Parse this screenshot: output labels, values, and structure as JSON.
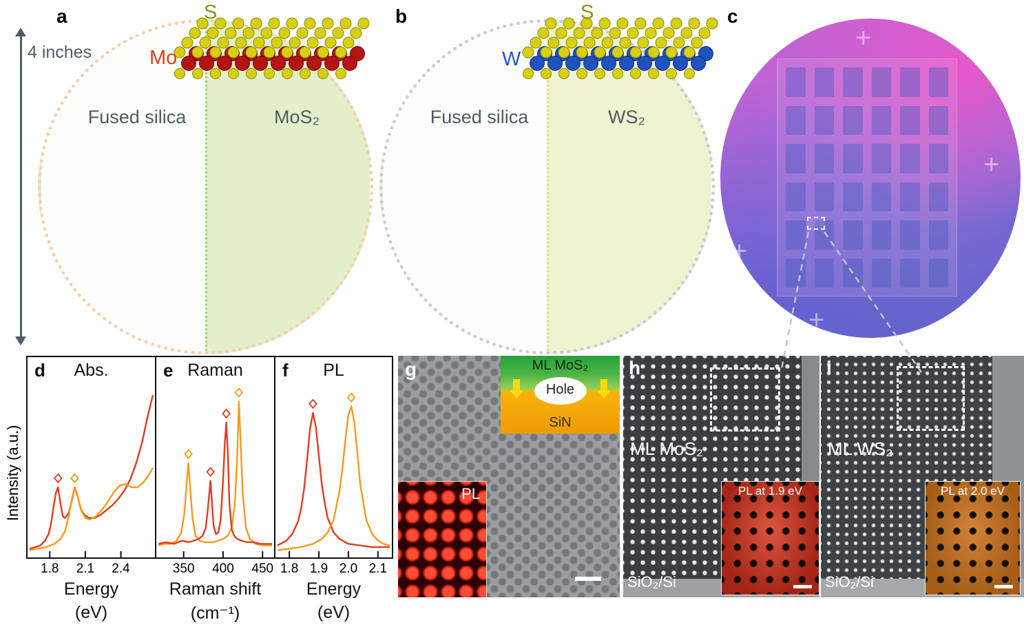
{
  "figure": {
    "scale_label": "4 inches",
    "panels": {
      "a": {
        "letter": "a",
        "s_label": "S",
        "metal_label": "Mo",
        "left_label": "Fused silica",
        "right_label": "MoS₂"
      },
      "b": {
        "letter": "b",
        "s_label": "S",
        "metal_label": "W",
        "left_label": "Fused silica",
        "right_label": "WS₂"
      },
      "c": {
        "letter": "c",
        "cross_glyph": "+"
      },
      "g": {
        "letter": "g",
        "schematic": {
          "layer_top": "ML MoS₂",
          "hole": "Hole",
          "layer_bottom": "SiN"
        },
        "pl_label": "PL"
      },
      "h": {
        "letter": "h",
        "material_label": "ML MoS₂",
        "substrate_label": "SiO₂/Si",
        "inset_label": "PL at 1.9 eV"
      },
      "i": {
        "letter": "i",
        "material_label": "ML WS₂",
        "substrate_label": "SiO₂/Si",
        "inset_label": "PL at 2.0 eV"
      }
    },
    "colors": {
      "mos2_red": "#e23b1e",
      "ws2_orange": "#f79a1b"
    }
  },
  "chart_data": [
    {
      "type": "line",
      "panel_letter": "d",
      "title": "Abs.",
      "xlabel": "Energy",
      "xunit": "(eV)",
      "ylabel": "Intensity (a.u.)",
      "xlim": [
        1.63,
        2.67
      ],
      "xticks": [
        "1.8",
        "2.1",
        "2.4"
      ],
      "grid": false,
      "legend": "none",
      "series": [
        {
          "name": "MoS₂",
          "color": "#e23b1e",
          "x": [
            1.63,
            1.68,
            1.72,
            1.76,
            1.79,
            1.81,
            1.83,
            1.85,
            1.87,
            1.89,
            1.91,
            1.93,
            1.96,
            1.99,
            2.01,
            2.03,
            2.06,
            2.09,
            2.13,
            2.18,
            2.23,
            2.28,
            2.33,
            2.38,
            2.43,
            2.48,
            2.53,
            2.58,
            2.62,
            2.67
          ],
          "y": [
            0.02,
            0.03,
            0.04,
            0.07,
            0.11,
            0.17,
            0.27,
            0.36,
            0.4,
            0.3,
            0.22,
            0.21,
            0.24,
            0.33,
            0.4,
            0.36,
            0.27,
            0.23,
            0.21,
            0.21,
            0.23,
            0.26,
            0.29,
            0.33,
            0.38,
            0.45,
            0.55,
            0.68,
            0.82,
            0.97
          ]
        },
        {
          "name": "WS₂",
          "color": "#f79a1b",
          "x": [
            1.63,
            1.7,
            1.77,
            1.84,
            1.89,
            1.93,
            1.96,
            1.99,
            2.01,
            2.04,
            2.07,
            2.1,
            2.14,
            2.19,
            2.24,
            2.29,
            2.34,
            2.39,
            2.44,
            2.49,
            2.54,
            2.59,
            2.63,
            2.67
          ],
          "y": [
            0.01,
            0.02,
            0.03,
            0.05,
            0.08,
            0.13,
            0.22,
            0.34,
            0.4,
            0.33,
            0.25,
            0.21,
            0.2,
            0.22,
            0.26,
            0.31,
            0.37,
            0.41,
            0.42,
            0.4,
            0.4,
            0.43,
            0.47,
            0.52
          ]
        }
      ],
      "markers": [
        {
          "x": 1.87,
          "y": 0.4,
          "color": "#e23b1e"
        },
        {
          "x": 2.01,
          "y": 0.4,
          "color": "#f79a1b"
        }
      ]
    },
    {
      "type": "line",
      "panel_letter": "e",
      "title": "Raman",
      "xlabel": "Raman shift",
      "xunit": "(cm⁻¹)",
      "xlim": [
        318,
        462
      ],
      "xticks": [
        "350",
        "400",
        "450"
      ],
      "grid": false,
      "legend": "none",
      "series": [
        {
          "name": "WS₂",
          "color": "#f79a1b",
          "x": [
            318,
            326,
            334,
            341,
            347,
            351,
            354,
            356,
            358,
            361,
            365,
            370,
            376,
            382,
            388,
            394,
            400,
            406,
            411,
            415,
            418,
            420,
            422,
            425,
            429,
            434,
            441,
            450,
            462
          ],
          "y": [
            0.04,
            0.05,
            0.05,
            0.07,
            0.12,
            0.24,
            0.44,
            0.55,
            0.42,
            0.22,
            0.1,
            0.07,
            0.06,
            0.06,
            0.06,
            0.07,
            0.08,
            0.1,
            0.15,
            0.3,
            0.6,
            0.93,
            0.7,
            0.35,
            0.15,
            0.08,
            0.05,
            0.04,
            0.04
          ]
        },
        {
          "name": "MoS₂",
          "color": "#e23b1e",
          "x": [
            318,
            328,
            338,
            348,
            356,
            363,
            369,
            374,
            378,
            381,
            384,
            386,
            388,
            391,
            394,
            397,
            400,
            402,
            404,
            406,
            408,
            411,
            414,
            418,
            423,
            430,
            438,
            448,
            458,
            462
          ],
          "y": [
            0.05,
            0.06,
            0.05,
            0.07,
            0.06,
            0.07,
            0.08,
            0.1,
            0.15,
            0.28,
            0.44,
            0.3,
            0.16,
            0.11,
            0.12,
            0.2,
            0.45,
            0.66,
            0.8,
            0.62,
            0.3,
            0.14,
            0.1,
            0.08,
            0.07,
            0.06,
            0.06,
            0.05,
            0.05,
            0.05
          ]
        }
      ],
      "markers": [
        {
          "x": 356,
          "y": 0.55,
          "color": "#f79a1b"
        },
        {
          "x": 384,
          "y": 0.44,
          "color": "#e23b1e"
        },
        {
          "x": 404,
          "y": 0.8,
          "color": "#e23b1e"
        },
        {
          "x": 420,
          "y": 0.93,
          "color": "#f79a1b"
        }
      ]
    },
    {
      "type": "line",
      "panel_letter": "f",
      "title": "PL",
      "xlabel": "Energy",
      "xunit": "(eV)",
      "xlim": [
        1.76,
        2.14
      ],
      "xticks": [
        "1.8",
        "1.9",
        "2.0",
        "2.1"
      ],
      "grid": false,
      "legend": "none",
      "series": [
        {
          "name": "MoS₂",
          "color": "#e23b1e",
          "x": [
            1.76,
            1.79,
            1.81,
            1.83,
            1.84,
            1.85,
            1.86,
            1.87,
            1.88,
            1.89,
            1.9,
            1.91,
            1.92,
            1.93,
            1.95,
            1.97,
            2.0,
            2.04,
            2.08,
            2.14
          ],
          "y": [
            0.04,
            0.07,
            0.11,
            0.19,
            0.27,
            0.39,
            0.57,
            0.76,
            0.86,
            0.77,
            0.59,
            0.42,
            0.3,
            0.21,
            0.12,
            0.08,
            0.05,
            0.04,
            0.03,
            0.03
          ]
        },
        {
          "name": "WS₂",
          "color": "#f79a1b",
          "x": [
            1.76,
            1.8,
            1.84,
            1.88,
            1.91,
            1.93,
            1.95,
            1.97,
            1.98,
            1.99,
            2.0,
            2.01,
            2.02,
            2.03,
            2.04,
            2.06,
            2.08,
            2.1,
            2.12,
            2.14
          ],
          "y": [
            0.01,
            0.02,
            0.03,
            0.05,
            0.08,
            0.12,
            0.2,
            0.38,
            0.52,
            0.7,
            0.85,
            0.9,
            0.8,
            0.62,
            0.42,
            0.2,
            0.11,
            0.07,
            0.05,
            0.04
          ]
        }
      ],
      "markers": [
        {
          "x": 1.88,
          "y": 0.86,
          "color": "#e23b1e"
        },
        {
          "x": 2.01,
          "y": 0.9,
          "color": "#f79a1b"
        }
      ]
    }
  ]
}
